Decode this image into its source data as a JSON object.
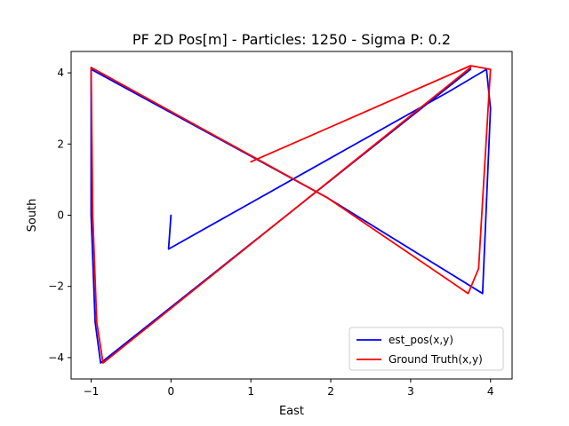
{
  "chart_data": {
    "type": "line",
    "title": "PF 2D Pos[m] - Particles: 1250 - Sigma P: 0.2",
    "xlabel": "East",
    "ylabel": "South",
    "xlim": [
      -1.25,
      4.27
    ],
    "ylim": [
      -4.6,
      4.6
    ],
    "xticks": [
      -1,
      0,
      1,
      2,
      3,
      4
    ],
    "yticks": [
      -4,
      -2,
      0,
      2,
      4
    ],
    "grid": false,
    "legend": {
      "position": "lower right"
    },
    "series": [
      {
        "name": "est_pos(x,y)",
        "color": "#0000ff",
        "x": [
          0.0,
          -0.03,
          3.5,
          3.95,
          4.0,
          3.9,
          1.95,
          -1.0,
          -1.0,
          -0.95,
          -0.88,
          3.75
        ],
        "y": [
          0.0,
          -0.95,
          3.5,
          4.1,
          3.0,
          -2.2,
          0.5,
          4.1,
          0.0,
          -3.0,
          -4.15,
          4.1
        ]
      },
      {
        "name": "Ground Truth(x,y)",
        "color": "#ff0000",
        "x": [
          1.0,
          3.75,
          4.0,
          3.97,
          3.85,
          3.72,
          1.95,
          -1.0,
          -0.98,
          -0.93,
          -0.85,
          3.75
        ],
        "y": [
          1.5,
          4.2,
          4.1,
          3.0,
          -1.5,
          -2.2,
          0.5,
          4.15,
          0.0,
          -3.0,
          -4.15,
          4.15
        ]
      }
    ]
  }
}
